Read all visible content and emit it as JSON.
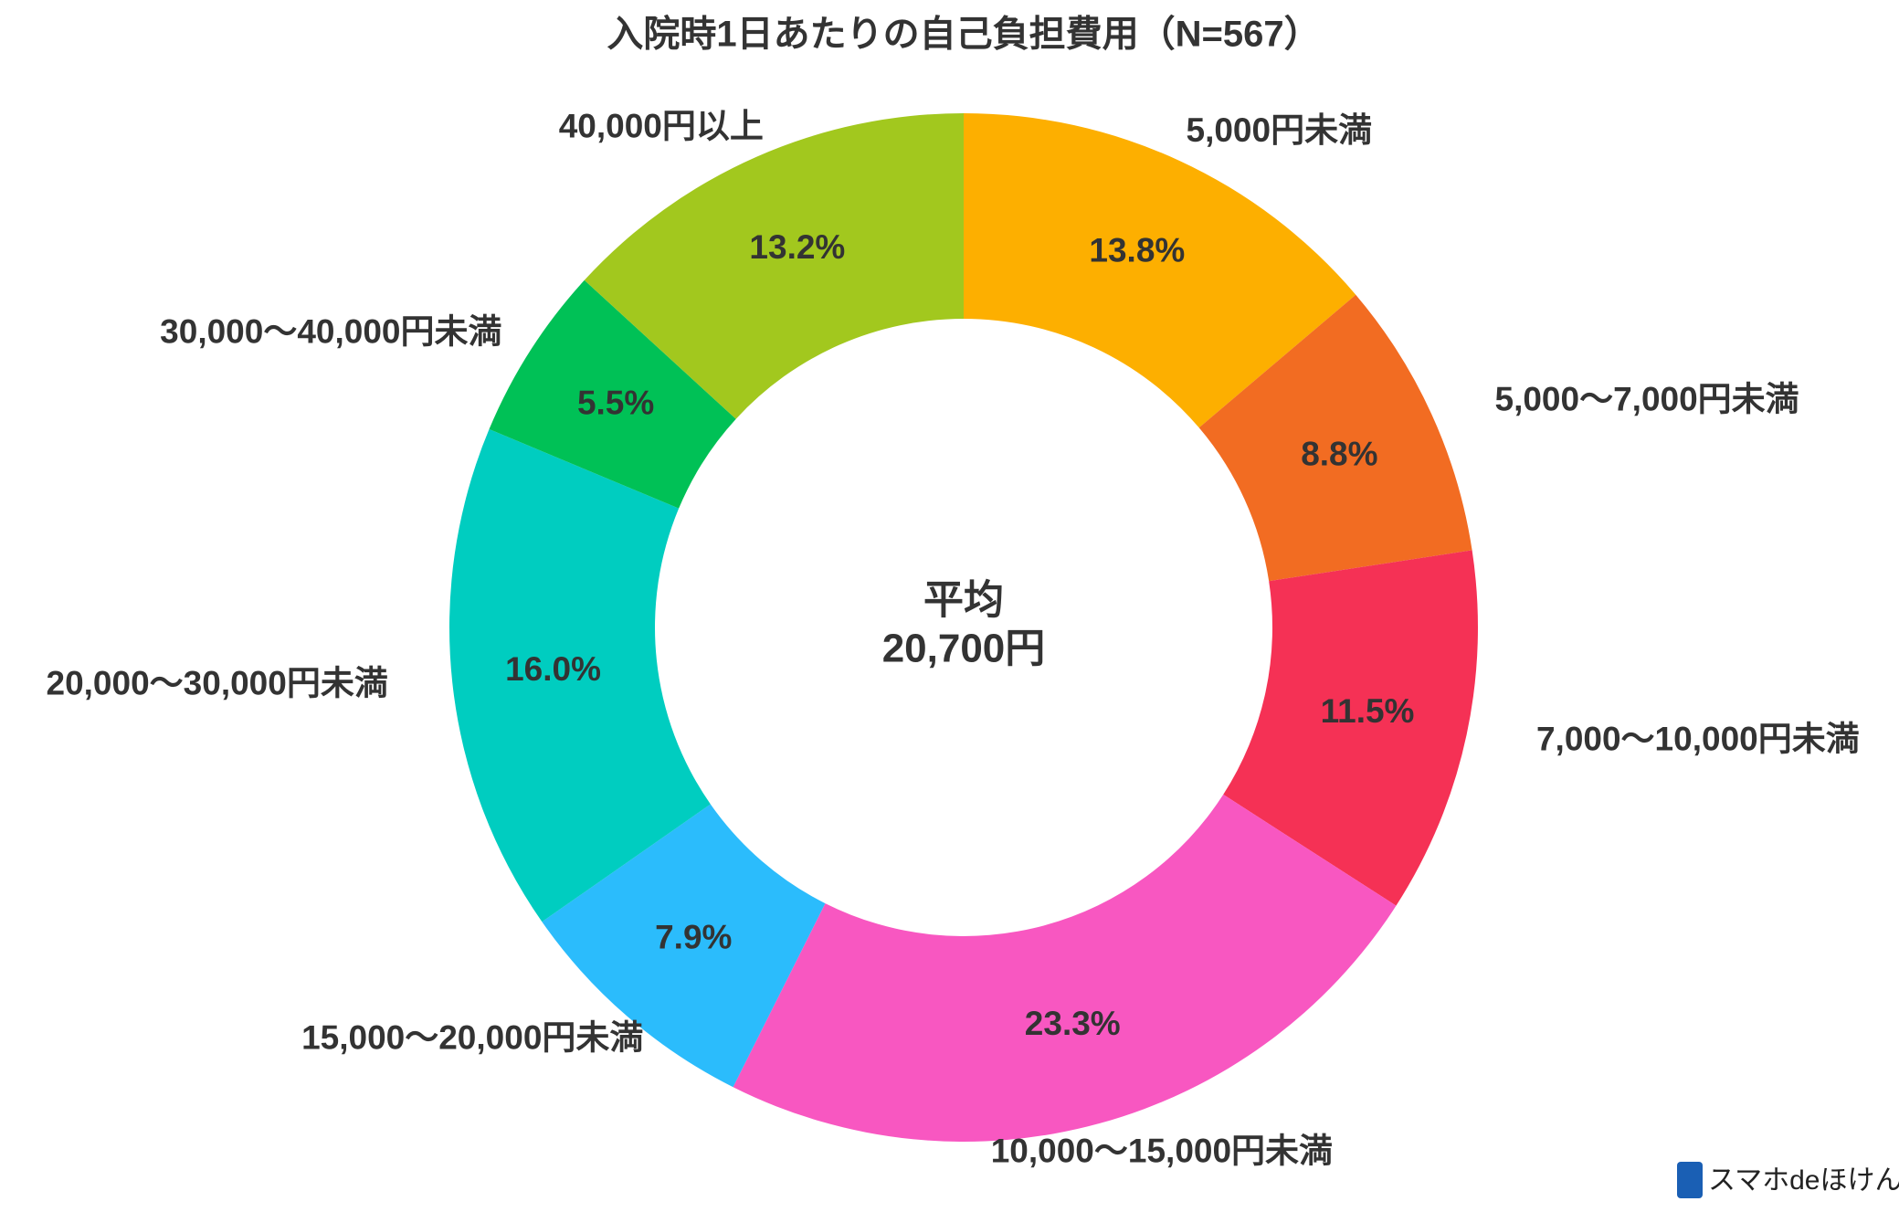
{
  "chart_data": {
    "type": "donut",
    "title": "入院時1日あたりの自己負担費用（N=567）",
    "categories": [
      "5,000円未満",
      "5,000～7,000円未満",
      "7,000～10,000円未満",
      "10,000～15,000円未満",
      "15,000～20,000円未満",
      "20,000～30,000円未満",
      "30,000～40,000円未満",
      "40,000円以上"
    ],
    "values": [
      13.8,
      8.8,
      11.5,
      23.3,
      7.9,
      16.0,
      5.5,
      13.2
    ],
    "value_labels": [
      "13.8%",
      "8.8%",
      "11.5%",
      "23.3%",
      "7.9%",
      "16.0%",
      "5.5%",
      "13.2%"
    ],
    "colors": [
      "#fdaf00",
      "#f26c22",
      "#f53155",
      "#f857c1",
      "#2bbcfc",
      "#00cdc0",
      "#00c156",
      "#a2c81e"
    ],
    "center_label": [
      "平均",
      "20,700円"
    ],
    "brand": "スマホdeほけん"
  }
}
